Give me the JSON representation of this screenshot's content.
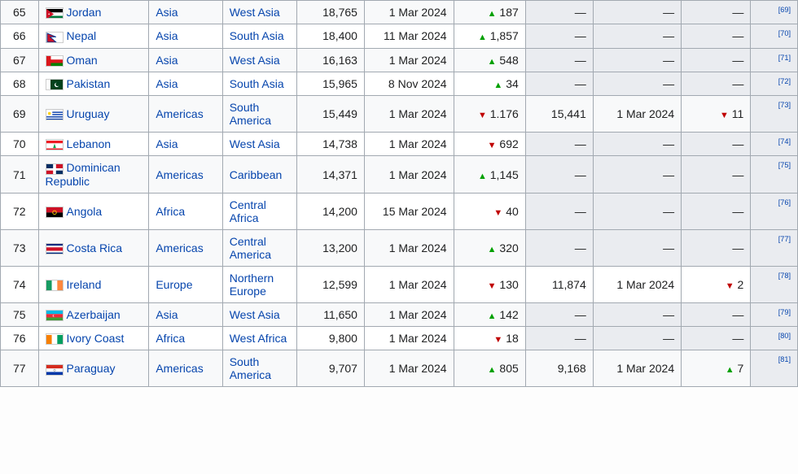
{
  "table": {
    "link_color": "#0645ad",
    "up_color": "#00a000",
    "down_color": "#c00000",
    "shaded_bg": "#eaecf0",
    "odd_row_bg": "#f8f9fa",
    "even_row_bg": "#ffffff",
    "border_color": "#a2a9b1",
    "rows": [
      {
        "rank": "65",
        "flag": "jordan",
        "country": "Jordan",
        "region": "Asia",
        "subregion": "West Asia",
        "v1": "18,765",
        "d1": "1 Mar 2024",
        "c1_dir": "up",
        "c1": "187",
        "v2": "—",
        "d2": "—",
        "c2_dir": null,
        "c2": "—",
        "ref": "[69]"
      },
      {
        "rank": "66",
        "flag": "nepal",
        "country": "Nepal",
        "region": "Asia",
        "subregion": "South Asia",
        "v1": "18,400",
        "d1": "11 Mar 2024",
        "c1_dir": "up",
        "c1": "1,857",
        "v2": "—",
        "d2": "—",
        "c2_dir": null,
        "c2": "—",
        "ref": "[70]"
      },
      {
        "rank": "67",
        "flag": "oman",
        "country": "Oman",
        "region": "Asia",
        "subregion": "West Asia",
        "v1": "16,163",
        "d1": "1 Mar 2024",
        "c1_dir": "up",
        "c1": "548",
        "v2": "—",
        "d2": "—",
        "c2_dir": null,
        "c2": "—",
        "ref": "[71]"
      },
      {
        "rank": "68",
        "flag": "pakistan",
        "country": "Pakistan",
        "region": "Asia",
        "subregion": "South Asia",
        "v1": "15,965",
        "d1": "8 Nov 2024",
        "c1_dir": "up",
        "c1": "34",
        "v2": "—",
        "d2": "—",
        "c2_dir": null,
        "c2": "—",
        "ref": "[72]"
      },
      {
        "rank": "69",
        "flag": "uruguay",
        "country": "Uruguay",
        "region": "Americas",
        "subregion": "South America",
        "v1": "15,449",
        "d1": "1 Mar 2024",
        "c1_dir": "down",
        "c1": "1.176",
        "v2": "15,441",
        "d2": "1 Mar 2024",
        "c2_dir": "down",
        "c2": "11",
        "ref": "[73]"
      },
      {
        "rank": "70",
        "flag": "lebanon",
        "country": "Lebanon",
        "region": "Asia",
        "subregion": "West Asia",
        "v1": "14,738",
        "d1": "1 Mar 2024",
        "c1_dir": "down",
        "c1": "692",
        "v2": "—",
        "d2": "—",
        "c2_dir": null,
        "c2": "—",
        "ref": "[74]"
      },
      {
        "rank": "71",
        "flag": "dominican",
        "country": "Dominican Republic",
        "region": "Americas",
        "subregion": "Caribbean",
        "v1": "14,371",
        "d1": "1 Mar 2024",
        "c1_dir": "up",
        "c1": "1,145",
        "v2": "—",
        "d2": "—",
        "c2_dir": null,
        "c2": "—",
        "ref": "[75]"
      },
      {
        "rank": "72",
        "flag": "angola",
        "country": "Angola",
        "region": "Africa",
        "subregion": "Central Africa",
        "v1": "14,200",
        "d1": "15 Mar 2024",
        "c1_dir": "down",
        "c1": "40",
        "v2": "—",
        "d2": "—",
        "c2_dir": null,
        "c2": "—",
        "ref": "[76]"
      },
      {
        "rank": "73",
        "flag": "costarica",
        "country": "Costa Rica",
        "region": "Americas",
        "subregion": "Central America",
        "v1": "13,200",
        "d1": "1 Mar 2024",
        "c1_dir": "up",
        "c1": "320",
        "v2": "—",
        "d2": "—",
        "c2_dir": null,
        "c2": "—",
        "ref": "[77]"
      },
      {
        "rank": "74",
        "flag": "ireland",
        "country": "Ireland",
        "region": "Europe",
        "subregion": "Northern Europe",
        "v1": "12,599",
        "d1": "1 Mar 2024",
        "c1_dir": "down",
        "c1": "130",
        "v2": "11,874",
        "d2": "1 Mar 2024",
        "c2_dir": "down",
        "c2": "2",
        "ref": "[78]"
      },
      {
        "rank": "75",
        "flag": "azerbaijan",
        "country": "Azerbaijan",
        "region": "Asia",
        "subregion": "West Asia",
        "v1": "11,650",
        "d1": "1 Mar 2024",
        "c1_dir": "up",
        "c1": "142",
        "v2": "—",
        "d2": "—",
        "c2_dir": null,
        "c2": "—",
        "ref": "[79]"
      },
      {
        "rank": "76",
        "flag": "ivory",
        "country": "Ivory Coast",
        "region": "Africa",
        "subregion": "West Africa",
        "v1": "9,800",
        "d1": "1 Mar 2024",
        "c1_dir": "down",
        "c1": "18",
        "v2": "—",
        "d2": "—",
        "c2_dir": null,
        "c2": "—",
        "ref": "[80]"
      },
      {
        "rank": "77",
        "flag": "paraguay",
        "country": "Paraguay",
        "region": "Americas",
        "subregion": "South America",
        "v1": "9,707",
        "d1": "1 Mar 2024",
        "c1_dir": "up",
        "c1": "805",
        "v2": "9,168",
        "d2": "1 Mar 2024",
        "c2_dir": "up",
        "c2": "7",
        "ref": "[81]"
      }
    ],
    "flags": {
      "jordan": "<svg viewBox='0 0 22 14'><rect width='22' height='14' fill='#fff'/><rect width='22' height='4.67' fill='#000'/><rect y='9.33' width='22' height='4.67' fill='#007a3d'/><path d='M0,0 L10,7 L0,14 Z' fill='#ce1126'/><circle cx='3.5' cy='7' r='0.9' fill='#fff'/></svg>",
      "nepal": "<svg viewBox='0 0 22 14'><path d='M1,1 L13,6 L5,6 L13,13 L1,13 Z' fill='#ce1126' stroke='#003893' stroke-width='1'/></svg>",
      "oman": "<svg viewBox='0 0 22 14'><rect width='22' height='14' fill='#fff'/><rect y='4.67' width='22' height='4.67' fill='#db161b'/><rect y='9.33' width='22' height='4.67' fill='#008000'/><rect width='6' height='14' fill='#db161b'/></svg>",
      "pakistan": "<svg viewBox='0 0 22 14'><rect width='22' height='14' fill='#01411c'/><rect width='5.5' height='14' fill='#fff'/><circle cx='14' cy='7' r='3' fill='#fff'/><circle cx='15' cy='6.3' r='2.6' fill='#01411c'/></svg>",
      "uruguay": "<svg viewBox='0 0 22 14'><rect width='22' height='14' fill='#fff'/><rect y='1.56' width='22' height='1.56' fill='#0038a8'/><rect y='4.67' width='22' height='1.56' fill='#0038a8'/><rect y='7.78' width='22' height='1.56' fill='#0038a8'/><rect y='10.89' width='22' height='1.56' fill='#0038a8'/><rect width='8' height='7.78' fill='#fff'/><circle cx='4' cy='3.9' r='2' fill='#fcd116'/></svg>",
      "lebanon": "<svg viewBox='0 0 22 14'><rect width='22' height='14' fill='#ed1c24'/><rect y='3.5' width='22' height='7' fill='#fff'/><path d='M11,4 L9,10 L13,10 Z' fill='#00a651'/></svg>",
      "dominican": "<svg viewBox='0 0 22 14'><rect width='22' height='14' fill='#fff'/><rect width='9' height='5.5' fill='#002d62'/><rect x='13' width='9' height='5.5' fill='#ce1126'/><rect y='8.5' width='9' height='5.5' fill='#ce1126'/><rect x='13' y='8.5' width='9' height='5.5' fill='#002d62'/></svg>",
      "angola": "<svg viewBox='0 0 22 14'><rect width='22' height='7' fill='#ce1126'/><rect y='7' width='22' height='7' fill='#000'/><circle cx='11' cy='7' r='2.5' fill='none' stroke='#ffce00' stroke-width='1'/></svg>",
      "costarica": "<svg viewBox='0 0 22 14'><rect width='22' height='14' fill='#002b7f'/><rect y='2.33' width='22' height='9.33' fill='#fff'/><rect y='4.67' width='22' height='4.67' fill='#ce1126'/></svg>",
      "ireland": "<svg viewBox='0 0 22 14'><rect width='7.33' height='14' fill='#169b62'/><rect x='7.33' width='7.33' height='14' fill='#fff'/><rect x='14.67' width='7.33' height='14' fill='#ff883e'/></svg>",
      "azerbaijan": "<svg viewBox='0 0 22 14'><rect width='22' height='4.67' fill='#00b9e4'/><rect y='4.67' width='22' height='4.67' fill='#ed2939'/><rect y='9.33' width='22' height='4.67' fill='#3f9c35'/><circle cx='10' cy='7' r='1.5' fill='#fff'/><circle cx='10.6' cy='7' r='1.3' fill='#ed2939'/></svg>",
      "ivory": "<svg viewBox='0 0 22 14'><rect width='7.33' height='14' fill='#f77f00'/><rect x='7.33' width='7.33' height='14' fill='#fff'/><rect x='14.67' width='7.33' height='14' fill='#009e60'/></svg>",
      "paraguay": "<svg viewBox='0 0 22 14'><rect width='22' height='4.67' fill='#d52b1e'/><rect y='4.67' width='22' height='4.67' fill='#fff'/><rect y='9.33' width='22' height='4.67' fill='#0038a8'/><circle cx='11' cy='7' r='1.3' fill='none' stroke='#000' stroke-width='0.3'/></svg>"
    }
  }
}
